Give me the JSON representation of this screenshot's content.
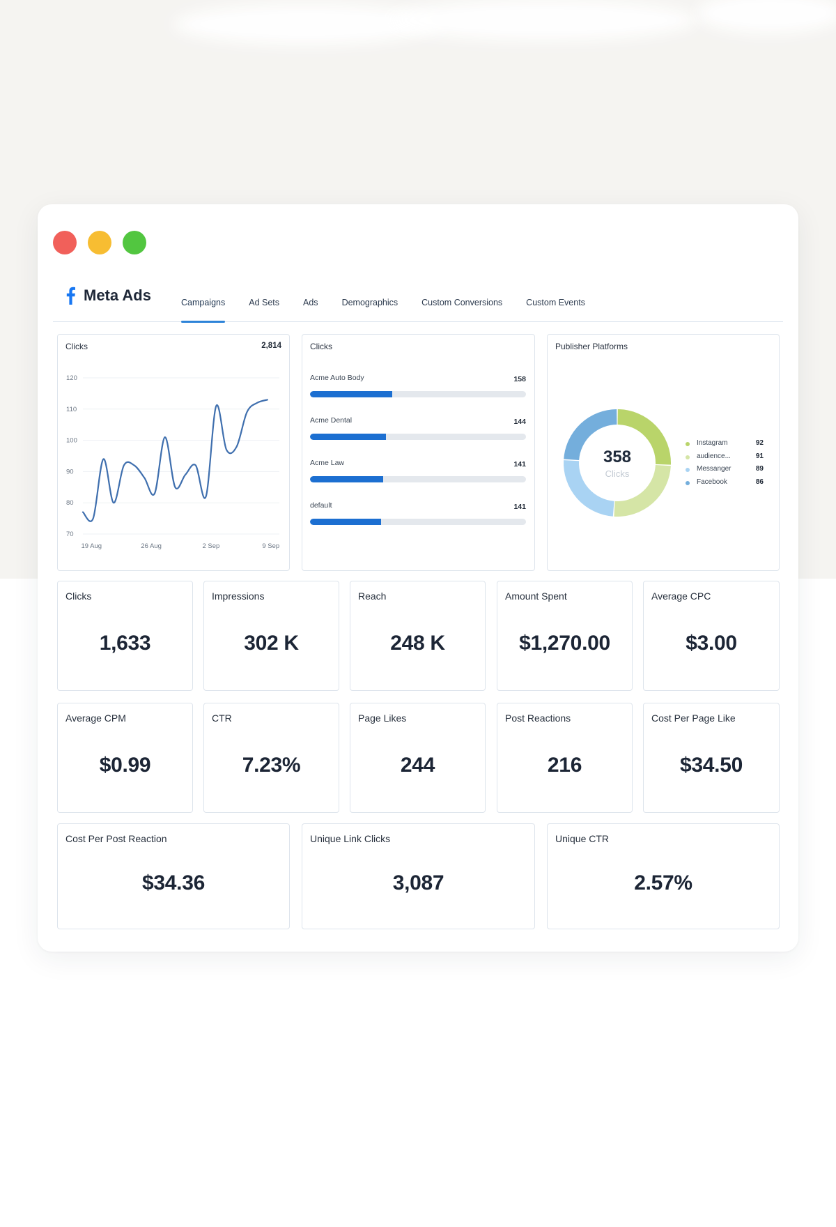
{
  "window": {
    "app_name": "Meta Ads",
    "tabs": [
      {
        "label": "Campaigns",
        "active": true
      },
      {
        "label": "Ad Sets",
        "active": false
      },
      {
        "label": "Ads",
        "active": false
      },
      {
        "label": "Demographics",
        "active": false
      },
      {
        "label": "Custom Conversions",
        "active": false
      },
      {
        "label": "Custom Events",
        "active": false
      }
    ]
  },
  "colors": {
    "accent": "#2d83d8",
    "bar_fill": "#1c6fd1",
    "line": "#3f6fae",
    "traffic_red": "#f1605a",
    "traffic_yellow": "#f7bd32",
    "traffic_green": "#52c640"
  },
  "icons": {
    "brand": "facebook-icon"
  },
  "line_card": {
    "title": "Clicks",
    "total": "2,814"
  },
  "bars_card": {
    "title": "Clicks"
  },
  "donut_card": {
    "title": "Publisher Platforms",
    "center_value": "358",
    "center_label": "Clicks"
  },
  "chart_data": [
    {
      "type": "line",
      "title": "Clicks",
      "total": "2,814",
      "y_ticks": [
        70,
        80,
        90,
        100,
        110,
        120
      ],
      "ylim": [
        70,
        120
      ],
      "x_tick_labels": [
        "19 Aug",
        "26 Aug",
        "2 Sep",
        "9 Sep"
      ],
      "x_tick_index": [
        1,
        8,
        15,
        22
      ],
      "grid": true,
      "series": [
        {
          "values": [
            77,
            75,
            94,
            80,
            92,
            92,
            88,
            83,
            101,
            85,
            89,
            92,
            82,
            111,
            97,
            98,
            109,
            112,
            113
          ]
        }
      ],
      "x_index": [
        0,
        1.2,
        2.4,
        3.6,
        4.8,
        6,
        7.2,
        8.4,
        9.6,
        10.8,
        12,
        13.2,
        14.4,
        15.6,
        16.8,
        18,
        19.2,
        20.4,
        21.6
      ]
    },
    {
      "type": "bar",
      "orientation": "horizontal",
      "title": "Clicks",
      "categories": [
        "Acme Auto Body",
        "Acme Dental",
        "Acme Law",
        "default"
      ],
      "values": [
        158,
        144,
        141,
        141
      ],
      "fill_fraction": [
        0.38,
        0.35,
        0.34,
        0.33
      ]
    },
    {
      "type": "pie",
      "donut": true,
      "title": "Publisher Platforms",
      "total": 358,
      "total_label": "Clicks",
      "categories": [
        "Instagram",
        "audience...",
        "Messanger",
        "Facebook"
      ],
      "values": [
        92,
        91,
        89,
        86
      ],
      "colors": [
        "#b9d46a",
        "#d5e5a6",
        "#a9d3f3",
        "#74aedc"
      ],
      "legend": "right"
    }
  ],
  "metrics": [
    {
      "label": "Clicks",
      "value": "1,633"
    },
    {
      "label": "Impressions",
      "value": "302 K"
    },
    {
      "label": "Reach",
      "value": "248 K"
    },
    {
      "label": "Amount Spent",
      "value": "$1,270.00"
    },
    {
      "label": "Average CPC",
      "value": "$3.00"
    },
    {
      "label": "Average CPM",
      "value": "$0.99"
    },
    {
      "label": "CTR",
      "value": "7.23%"
    },
    {
      "label": "Page Likes",
      "value": "244"
    },
    {
      "label": "Post Reactions",
      "value": "216"
    },
    {
      "label": "Cost Per Page Like",
      "value": "$34.50"
    }
  ],
  "wide_metrics": [
    {
      "label": "Cost Per Post Reaction",
      "value": "$34.36"
    },
    {
      "label": "Unique Link Clicks",
      "value": "3,087"
    },
    {
      "label": "Unique CTR",
      "value": "2.57%"
    }
  ]
}
